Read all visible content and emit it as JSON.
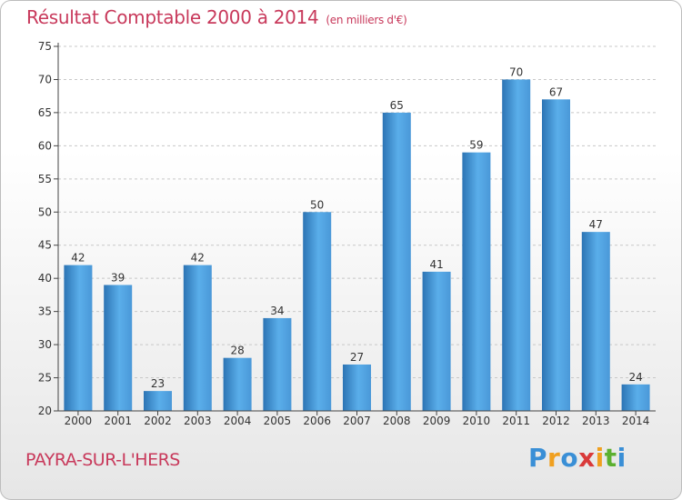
{
  "chart_data": {
    "type": "bar",
    "title": "Résultat Comptable 2000 à 2014",
    "subtitle": "(en milliers d'€)",
    "xlabel": "",
    "ylabel": "",
    "categories": [
      "2000",
      "2001",
      "2002",
      "2003",
      "2004",
      "2005",
      "2006",
      "2007",
      "2008",
      "2009",
      "2010",
      "2011",
      "2012",
      "2013",
      "2014"
    ],
    "values": [
      42,
      39,
      23,
      42,
      28,
      34,
      50,
      27,
      65,
      41,
      59,
      70,
      67,
      47,
      24
    ],
    "ylim": [
      20,
      75
    ],
    "yticks": [
      20,
      25,
      30,
      35,
      40,
      45,
      50,
      55,
      60,
      65,
      70,
      75
    ],
    "grid": true,
    "bar_color": "#4a98d8",
    "bar_color_light": "#5aaeea",
    "bar_color_dark": "#2c74b4"
  },
  "footer": {
    "town": "PAYRA-SUR-L'HERS",
    "logo_letters": [
      "P",
      "r",
      "o",
      "x",
      "i",
      "t",
      "i"
    ],
    "logo_colors": [
      "#3a8fd6",
      "#f0a020",
      "#3a8fd6",
      "#d93a3a",
      "#f0a020",
      "#5cb030",
      "#3a8fd6"
    ]
  },
  "colors": {
    "accent": "#c8395b",
    "grid": "#c8c8c8",
    "axis": "#444444"
  }
}
